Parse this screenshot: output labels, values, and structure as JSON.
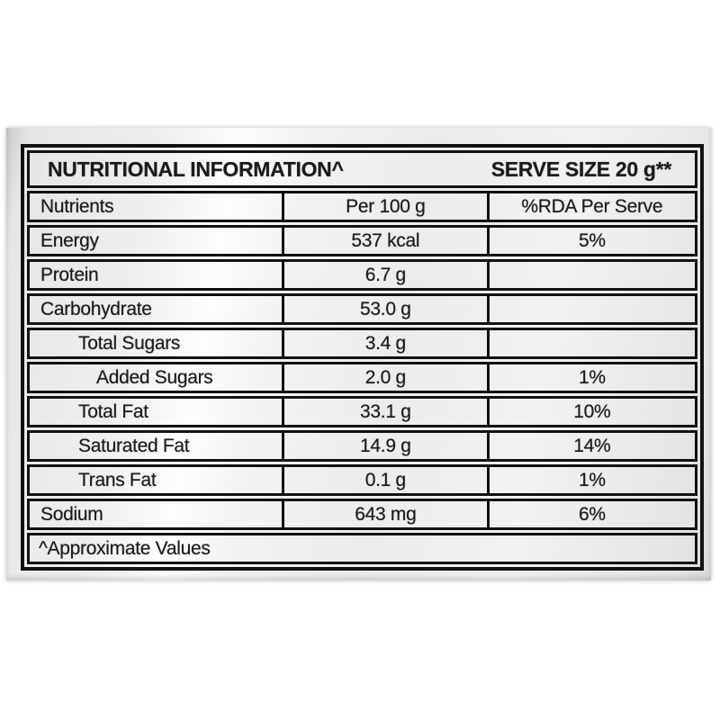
{
  "label": {
    "title_left": "NUTRITIONAL INFORMATION^",
    "title_right": "SERVE SIZE 20 g**",
    "columns": {
      "nutrients": "Nutrients",
      "per_100g": "Per 100 g",
      "rda_per_serve": "%RDA Per Serve"
    },
    "rows": [
      {
        "nutrient": "Energy",
        "per_100g": "537 kcal",
        "rda_per_serve": "5%",
        "indent": 0
      },
      {
        "nutrient": "Protein",
        "per_100g": "6.7 g",
        "rda_per_serve": "",
        "indent": 0
      },
      {
        "nutrient": "Carbohydrate",
        "per_100g": "53.0 g",
        "rda_per_serve": "",
        "indent": 0
      },
      {
        "nutrient": "Total Sugars",
        "per_100g": "3.4 g",
        "rda_per_serve": "",
        "indent": 1
      },
      {
        "nutrient": "Added Sugars",
        "per_100g": "2.0 g",
        "rda_per_serve": "1%",
        "indent": 2
      },
      {
        "nutrient": "Total Fat",
        "per_100g": "33.1 g",
        "rda_per_serve": "10%",
        "indent": 1
      },
      {
        "nutrient": "Saturated Fat",
        "per_100g": "14.9 g",
        "rda_per_serve": "14%",
        "indent": 1
      },
      {
        "nutrient": "Trans Fat",
        "per_100g": "0.1 g",
        "rda_per_serve": "1%",
        "indent": 1
      },
      {
        "nutrient": "Sodium",
        "per_100g": "643 mg",
        "rda_per_serve": "6%",
        "indent": 0
      }
    ],
    "footnote": "^Approximate Values",
    "colors": {
      "border": "#121212",
      "text": "#1b1b1b",
      "label_bg_light": "#fdfdfd",
      "label_bg_dark": "#c9c9c9",
      "page_bg": "#ffffff"
    }
  }
}
